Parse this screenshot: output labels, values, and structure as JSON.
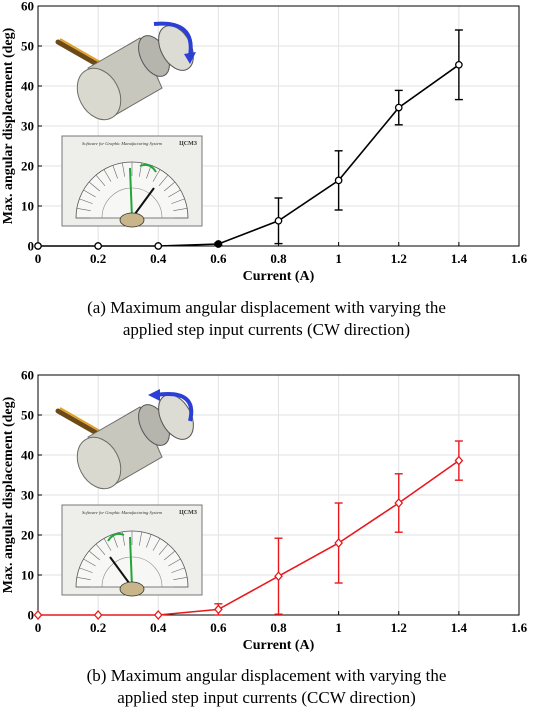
{
  "chart_data": [
    {
      "type": "line",
      "panel": "a",
      "xlabel": "Current (A)",
      "ylabel": "Max. angular displacement (deg)",
      "xlim": [
        0,
        1.6
      ],
      "ylim": [
        0,
        60
      ],
      "xticks": [
        "0",
        "0.2",
        "0.4",
        "0.6",
        "0.8",
        "1",
        "1.2",
        "1.4",
        "1.6"
      ],
      "yticks": [
        "0",
        "10",
        "20",
        "30",
        "40",
        "50",
        "60"
      ],
      "grid": true,
      "color": "#000000",
      "marker": "circle",
      "x": [
        0,
        0.2,
        0.4,
        0.6,
        0.8,
        1.0,
        1.2,
        1.4
      ],
      "y": [
        0,
        0,
        0,
        0.5,
        6.3,
        16.4,
        34.6,
        45.3
      ],
      "err": [
        0,
        0,
        0,
        0.3,
        5.7,
        7.4,
        4.3,
        8.7
      ],
      "caption": [
        "(a) Maximum angular displacement with varying the",
        "applied step input currents (CW direction)"
      ],
      "inset_label": "Software for Graphic Manufacturing System",
      "inset_logo": "ЦСМЗ",
      "arrow_color": "#2b3fd6"
    },
    {
      "type": "line",
      "panel": "b",
      "xlabel": "Current (A)",
      "ylabel": "Max. angular displacement (deg)",
      "xlim": [
        0,
        1.6
      ],
      "ylim": [
        0,
        60
      ],
      "xticks": [
        "0",
        "0.2",
        "0.4",
        "0.6",
        "0.8",
        "1",
        "1.2",
        "1.4",
        "1.6"
      ],
      "yticks": [
        "0",
        "10",
        "20",
        "30",
        "40",
        "50",
        "60"
      ],
      "grid": true,
      "color": "#e8191c",
      "marker": "diamond",
      "x": [
        0,
        0.2,
        0.4,
        0.6,
        0.8,
        1.0,
        1.2,
        1.4
      ],
      "y": [
        0,
        0,
        0,
        1.4,
        9.7,
        18.0,
        28.0,
        38.6
      ],
      "err": [
        0,
        0,
        0,
        1.4,
        9.5,
        10.0,
        7.3,
        4.9
      ],
      "caption": [
        "(b) Maximum angular displacement with varying the",
        "applied step input currents (CCW direction)"
      ],
      "inset_label": "Software for Graphic Manufacturing System",
      "inset_logo": "ЦСМЗ",
      "arrow_color": "#2b3fd6"
    }
  ]
}
